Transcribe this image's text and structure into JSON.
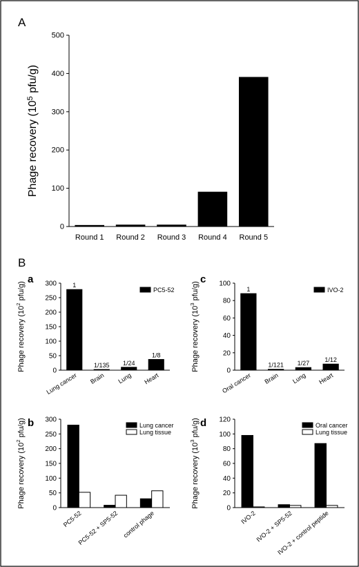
{
  "panel_labels": {
    "A": "A",
    "B": "B",
    "a": "a",
    "b": "b",
    "c": "c",
    "d": "d"
  },
  "colors": {
    "series_black": "#000000",
    "series_white": "#ffffff",
    "frame": "#000000"
  },
  "chart_data": [
    {
      "id": "A",
      "type": "bar",
      "categories": [
        "Round 1",
        "Round 2",
        "Round 3",
        "Round 4",
        "Round 5"
      ],
      "values": [
        3,
        4,
        4,
        90,
        390
      ],
      "ylabel_parts": [
        "Phage recovery (10",
        "5",
        " pfu/g)"
      ],
      "ylim": [
        0,
        500
      ],
      "yticks": [
        0,
        100,
        200,
        300,
        400,
        500
      ]
    },
    {
      "id": "a",
      "type": "bar",
      "categories": [
        "Lung cancer",
        "Brain",
        "Lung",
        "Heart"
      ],
      "values": [
        278,
        2,
        10,
        37
      ],
      "data_labels": [
        "1",
        "1/135",
        "1/24",
        "1/8"
      ],
      "series_name": "PC5-52",
      "ylabel_parts": [
        "Phage recovery (10",
        "2",
        " pfu/g)"
      ],
      "ylim": [
        0,
        300
      ],
      "yticks": [
        0,
        50,
        100,
        150,
        200,
        250,
        300
      ]
    },
    {
      "id": "b",
      "type": "bar",
      "categories": [
        "PC5-52",
        "PC5-52 + SP5-52",
        "control phage"
      ],
      "series": [
        {
          "name": "Lung cancer",
          "values": [
            280,
            8,
            30
          ]
        },
        {
          "name": "Lung tissue",
          "values": [
            52,
            42,
            57
          ]
        }
      ],
      "ylabel_parts": [
        "Phage recovery (10",
        "2",
        " pfu/g)"
      ],
      "ylim": [
        0,
        300
      ],
      "yticks": [
        0,
        50,
        100,
        150,
        200,
        250,
        300
      ]
    },
    {
      "id": "c",
      "type": "bar",
      "categories": [
        "Oral cancer",
        "Brain",
        "Lung",
        "Heart"
      ],
      "values": [
        88,
        1,
        3,
        7
      ],
      "data_labels": [
        "1",
        "1/121",
        "1/27",
        "1/12"
      ],
      "series_name": "IVO-2",
      "ylabel_parts": [
        "Phage recovery (10",
        "3",
        " pfu/g)"
      ],
      "ylim": [
        0,
        100
      ],
      "yticks": [
        0,
        20,
        40,
        60,
        80,
        100
      ]
    },
    {
      "id": "d",
      "type": "bar",
      "categories": [
        "IVO-2",
        "IVO-2 + SP5-52",
        "IVO-2 + control peptide"
      ],
      "series": [
        {
          "name": "Oral cancer",
          "values": [
            98,
            4,
            87
          ]
        },
        {
          "name": "Lung tissue",
          "values": [
            1,
            3,
            3
          ]
        }
      ],
      "ylabel_parts": [
        "Phage recovery (10",
        "3",
        " pfu/g)"
      ],
      "ylim": [
        0,
        120
      ],
      "yticks": [
        0,
        20,
        40,
        60,
        80,
        100,
        120
      ]
    }
  ]
}
